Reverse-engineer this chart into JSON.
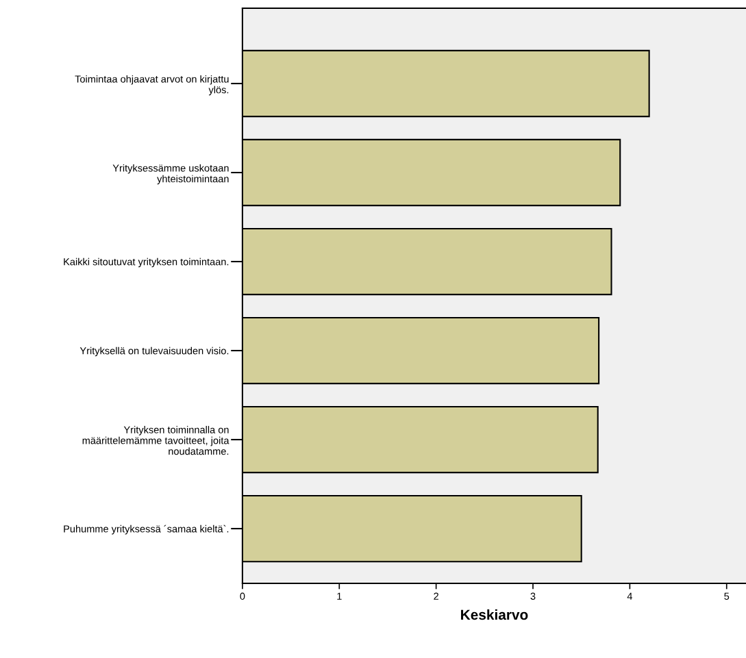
{
  "chart_data": {
    "type": "bar",
    "orientation": "horizontal",
    "xlabel": "Keskiarvo",
    "categories": [
      "Toimintaa ohjaavat arvot on kirjattu\nylös.",
      "Yrityksessämme uskotaan\nyhteistoimintaan",
      "Kaikki sitoutuvat yrityksen toimintaan.",
      "Yrityksellä on tulevaisuuden visio.",
      "Yrityksen toiminnalla on\nmäärittelemämme tavoitteet, joita\nnoudatamme.",
      "Puhumme yrityksessä ´samaa kieltä`."
    ],
    "values": [
      4.2,
      3.9,
      3.81,
      3.68,
      3.67,
      3.5
    ],
    "color": "#d3cf99",
    "xlim": [
      0,
      5.2
    ],
    "xticks": [
      0,
      1,
      2,
      3,
      4,
      5
    ],
    "grid": false,
    "legend": false
  }
}
